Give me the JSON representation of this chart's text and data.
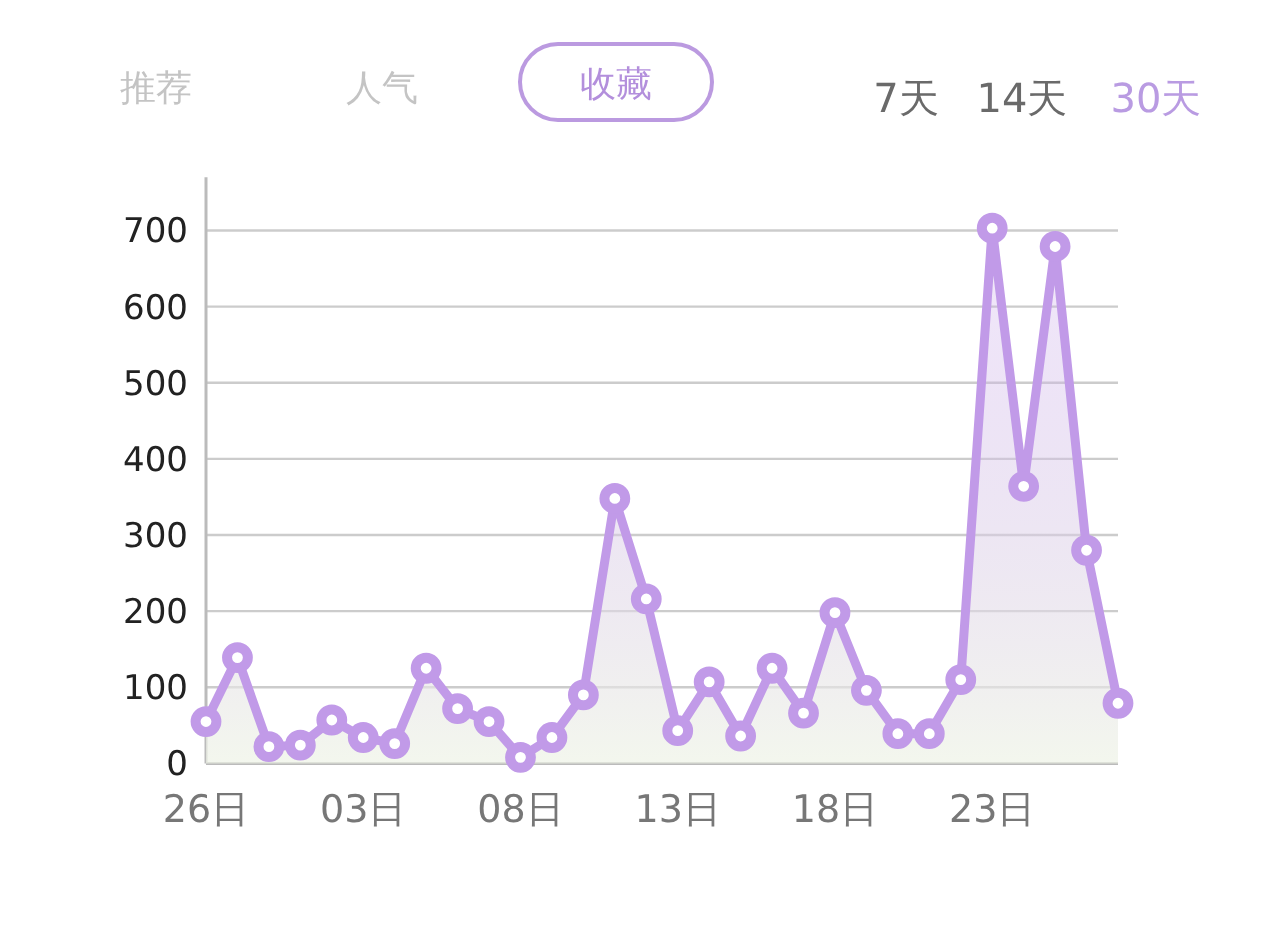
{
  "chart_data": {
    "type": "area",
    "annotations": [
      "推荐",
      "人气",
      "收藏",
      "7天",
      "14天",
      "30天"
    ],
    "categories": [
      "26日",
      null,
      null,
      null,
      null,
      "03日",
      null,
      null,
      null,
      null,
      "08日",
      null,
      null,
      null,
      null,
      "13日",
      null,
      null,
      null,
      null,
      "18日",
      null,
      null,
      null,
      null,
      "23日",
      null,
      null,
      null,
      null
    ],
    "series": [
      {
        "color": "#c19ae8",
        "values": [
          55,
          139,
          22,
          24,
          57,
          34,
          26,
          125,
          72,
          55,
          8,
          34,
          90,
          348,
          216,
          43,
          107,
          36,
          125,
          66,
          198,
          96,
          39,
          39,
          110,
          703,
          364,
          679,
          280,
          79
        ]
      }
    ],
    "ylim": [
      0,
      770
    ],
    "yticks": [
      0,
      100,
      200,
      300,
      400,
      500,
      600,
      700
    ],
    "grid": "y",
    "marker": "circle"
  }
}
